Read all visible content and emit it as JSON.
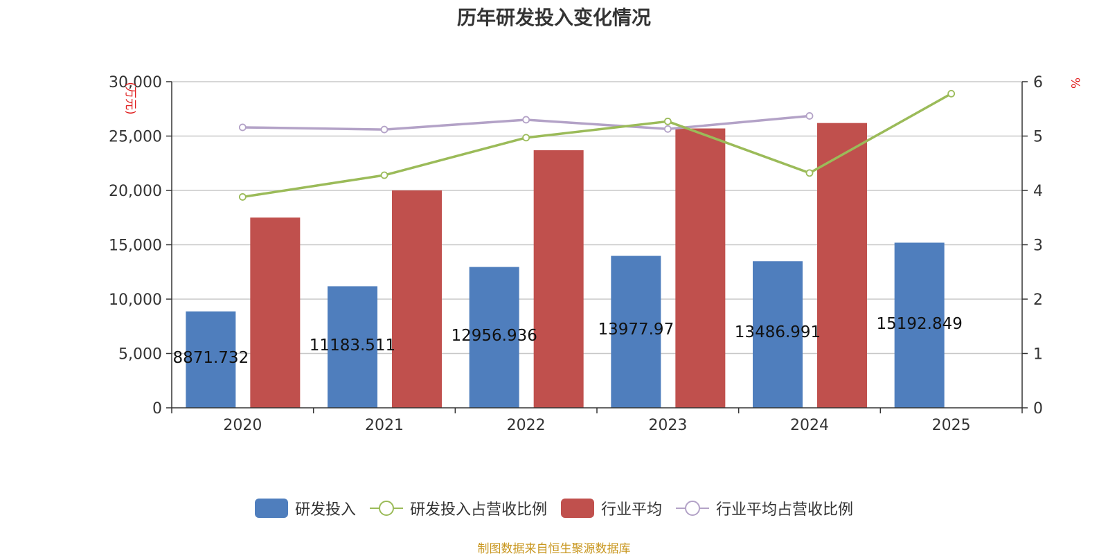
{
  "title": "历年研发投入变化情况",
  "source": "制图数据来自恒生聚源数据库",
  "y_left_unit": "(万元)",
  "y_right_unit": "%",
  "colors": {
    "rd": "#4f7ebd",
    "rd_ratio": "#9bbb59",
    "industry": "#c0504d",
    "industry_ratio": "#b3a2c7",
    "unit_label": "#e02020",
    "source": "#c8961e"
  },
  "legend": [
    {
      "label": "研发投入",
      "kind": "bar",
      "color": "#4f7ebd"
    },
    {
      "label": "研发投入占营收比例",
      "kind": "line",
      "color": "#9bbb59"
    },
    {
      "label": "行业平均",
      "kind": "bar",
      "color": "#c0504d"
    },
    {
      "label": "行业平均占营收比例",
      "kind": "line",
      "color": "#b3a2c7"
    }
  ],
  "chart_data": {
    "type": "bar",
    "title": "历年研发投入变化情况",
    "categories": [
      "2020",
      "2021",
      "2022",
      "2023",
      "2024",
      "2025"
    ],
    "y_left": {
      "ticks": [
        "0",
        "5,000",
        "10,000",
        "15,000",
        "20,000",
        "25,000",
        "30,000"
      ],
      "range": [
        0,
        30000
      ]
    },
    "y_right": {
      "ticks": [
        "0",
        "1",
        "2",
        "3",
        "4",
        "5",
        "6"
      ],
      "range": [
        0,
        6
      ]
    },
    "series": [
      {
        "name": "研发投入",
        "type": "bar",
        "axis": "left",
        "values": [
          8871.732,
          11183.511,
          12956.936,
          13977.97,
          13486.991,
          15192.849
        ],
        "labels": [
          "8871.732",
          "11183.511",
          "12956.936",
          "13977.97",
          "13486.991",
          "15192.849"
        ]
      },
      {
        "name": "行业平均",
        "type": "bar",
        "axis": "left",
        "values": [
          17500,
          20000,
          23700,
          25700,
          26200,
          null
        ]
      },
      {
        "name": "研发投入占营收比例",
        "type": "line",
        "axis": "right",
        "values": [
          3.88,
          4.28,
          4.97,
          5.27,
          4.32,
          5.78
        ]
      },
      {
        "name": "行业平均占营收比例",
        "type": "line",
        "axis": "right",
        "values": [
          5.16,
          5.12,
          5.3,
          5.13,
          5.37,
          null
        ]
      }
    ],
    "grid": true,
    "legend_position": "bottom"
  }
}
